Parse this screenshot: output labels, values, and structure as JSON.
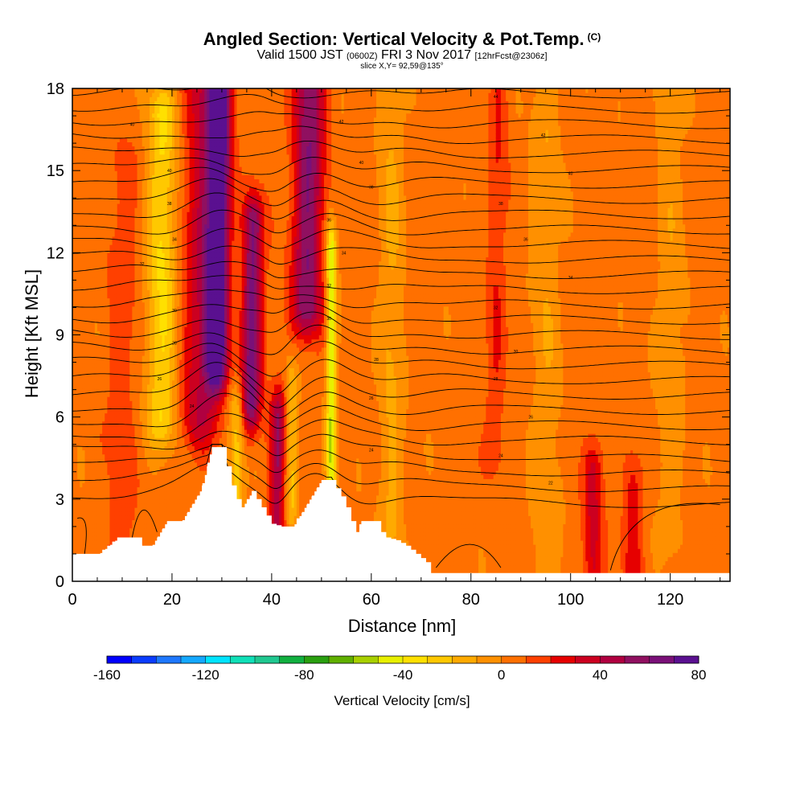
{
  "header": {
    "title_main": "Angled Section: Vertical Velocity & Pot.Temp.",
    "title_unit": "(C)",
    "valid_a": "Valid 1500 JST",
    "valid_b": "(0600Z)",
    "valid_c": "FRI 3 Nov 2017",
    "valid_d": "[12hrFcst@2306z]",
    "slice": "slice X,Y= 92,59@135°"
  },
  "chart_data": {
    "type": "heatmap",
    "xlabel": "Distance [nm]",
    "ylabel": "Height [Kft MSL]",
    "xlim": [
      0,
      132
    ],
    "ylim": [
      0,
      18
    ],
    "x_ticks": [
      0,
      20,
      40,
      60,
      80,
      100,
      120
    ],
    "y_ticks": [
      0,
      3,
      6,
      9,
      12,
      15,
      18
    ],
    "colorbar": {
      "label": "Vertical Velocity [cm/s]",
      "range": [
        -160,
        80
      ],
      "ticks": [
        -160,
        -120,
        -80,
        -40,
        0,
        40,
        80
      ],
      "colors": [
        "#0000ff",
        "#0a3cff",
        "#1e78ff",
        "#14a8ff",
        "#00e4ff",
        "#10e0b8",
        "#20c890",
        "#12b040",
        "#2aa010",
        "#60b000",
        "#a8d000",
        "#e8f000",
        "#ffe000",
        "#ffc800",
        "#ffaa00",
        "#ff9000",
        "#ff7000",
        "#ff4000",
        "#e60000",
        "#cc0020",
        "#b00040",
        "#901060",
        "#7a1078",
        "#5a1090"
      ]
    },
    "velocity_features": [
      {
        "x": 29,
        "strength": 75,
        "width": 2.2,
        "z_low": 8.0,
        "z_high": 18
      },
      {
        "x": 26,
        "strength": 35,
        "width": 4.0,
        "z_low": 6.0,
        "z_high": 18
      },
      {
        "x": 36,
        "strength": 60,
        "width": 2.0,
        "z_low": 6.5,
        "z_high": 13
      },
      {
        "x": 47,
        "strength": 55,
        "width": 3.0,
        "z_low": 10.0,
        "z_high": 18
      },
      {
        "x": 41.5,
        "strength": 45,
        "width": 1.6,
        "z_low": 1.5,
        "z_high": 6.0
      },
      {
        "x": 52,
        "strength": -55,
        "width": 1.0,
        "z_low": 4.0,
        "z_high": 12.0
      },
      {
        "x": 18,
        "strength": -35,
        "width": 3.0,
        "z_low": 6.0,
        "z_high": 17
      },
      {
        "x": 33,
        "strength": -30,
        "width": 1.5,
        "z_low": 3.0,
        "z_high": 6.0
      },
      {
        "x": 44,
        "strength": -25,
        "width": 1.2,
        "z_low": 3.0,
        "z_high": 7.0
      },
      {
        "x": 105,
        "strength": 28,
        "width": 2.0,
        "z_low": 0.5,
        "z_high": 4.0
      },
      {
        "x": 113,
        "strength": 22,
        "width": 2.0,
        "z_low": 0.5,
        "z_high": 3.5
      },
      {
        "x": 10,
        "strength": 12,
        "width": 3.0,
        "z_low": 1.0,
        "z_high": 15
      },
      {
        "x": 85,
        "strength": 15,
        "width": 2.0,
        "z_low": 5.0,
        "z_high": 18
      },
      {
        "x": 64,
        "strength": -15,
        "width": 2.5,
        "z_low": 0.5,
        "z_high": 18
      },
      {
        "x": 95,
        "strength": -12,
        "width": 3.0,
        "z_low": 0.5,
        "z_high": 18
      },
      {
        "x": 120,
        "strength": -10,
        "width": 3.0,
        "z_low": 2.0,
        "z_high": 18
      }
    ],
    "terrain": [
      [
        0,
        1.0
      ],
      [
        5,
        1.0
      ],
      [
        7,
        1.3
      ],
      [
        9,
        1.6
      ],
      [
        13,
        1.6
      ],
      [
        14,
        1.3
      ],
      [
        16,
        1.3
      ],
      [
        17,
        1.6
      ],
      [
        18,
        1.9
      ],
      [
        19,
        2.2
      ],
      [
        22,
        2.2
      ],
      [
        23,
        2.5
      ],
      [
        24,
        2.8
      ],
      [
        25,
        3.1
      ],
      [
        26,
        3.5
      ],
      [
        27,
        4.2
      ],
      [
        28,
        4.9
      ],
      [
        30,
        4.9
      ],
      [
        31,
        4.2
      ],
      [
        32,
        3.5
      ],
      [
        33,
        3.0
      ],
      [
        34,
        2.7
      ],
      [
        35,
        3.0
      ],
      [
        36,
        3.3
      ],
      [
        37,
        3.0
      ],
      [
        38,
        2.7
      ],
      [
        39,
        2.4
      ],
      [
        40,
        2.1
      ],
      [
        42,
        2.0
      ],
      [
        44,
        2.0
      ],
      [
        45,
        2.3
      ],
      [
        46,
        2.5
      ],
      [
        47,
        2.8
      ],
      [
        48,
        3.1
      ],
      [
        49,
        3.4
      ],
      [
        50,
        3.7
      ],
      [
        52,
        3.7
      ],
      [
        53,
        3.4
      ],
      [
        54,
        3.1
      ],
      [
        55,
        2.7
      ],
      [
        56,
        2.2
      ],
      [
        57,
        1.8
      ],
      [
        58,
        2.2
      ],
      [
        61,
        2.2
      ],
      [
        62,
        1.8
      ],
      [
        63,
        1.6
      ],
      [
        65,
        1.5
      ],
      [
        67,
        1.3
      ],
      [
        69,
        1.0
      ],
      [
        71,
        0.7
      ],
      [
        72,
        0.3
      ],
      [
        132,
        0.3
      ]
    ],
    "theta_contour_labels": [
      {
        "x": 12,
        "z": 16.7,
        "text": "40"
      },
      {
        "x": 19.5,
        "z": 15.0,
        "text": "40"
      },
      {
        "x": 19.5,
        "z": 13.8,
        "text": "38"
      },
      {
        "x": 20.5,
        "z": 12.5,
        "text": "34"
      },
      {
        "x": 14,
        "z": 11.6,
        "text": "32"
      },
      {
        "x": 20.5,
        "z": 9.9,
        "text": "30"
      },
      {
        "x": 20.5,
        "z": 8.7,
        "text": "28"
      },
      {
        "x": 17.5,
        "z": 7.4,
        "text": "26"
      },
      {
        "x": 24,
        "z": 6.4,
        "text": "24"
      },
      {
        "x": 54,
        "z": 16.8,
        "text": "42"
      },
      {
        "x": 58,
        "z": 15.3,
        "text": "40"
      },
      {
        "x": 60,
        "z": 14.4,
        "text": "38"
      },
      {
        "x": 51.5,
        "z": 13.2,
        "text": "36"
      },
      {
        "x": 54.5,
        "z": 12.0,
        "text": "34"
      },
      {
        "x": 51.5,
        "z": 10.8,
        "text": "32"
      },
      {
        "x": 51.5,
        "z": 9.6,
        "text": "30"
      },
      {
        "x": 61,
        "z": 8.1,
        "text": "28"
      },
      {
        "x": 60,
        "z": 6.7,
        "text": "26"
      },
      {
        "x": 60,
        "z": 4.8,
        "text": "24"
      },
      {
        "x": 85,
        "z": 17.7,
        "text": "44"
      },
      {
        "x": 94.5,
        "z": 16.3,
        "text": "42"
      },
      {
        "x": 100,
        "z": 14.9,
        "text": "40"
      },
      {
        "x": 86,
        "z": 13.8,
        "text": "38"
      },
      {
        "x": 91,
        "z": 12.5,
        "text": "36"
      },
      {
        "x": 100,
        "z": 11.1,
        "text": "34"
      },
      {
        "x": 85,
        "z": 10.0,
        "text": "32"
      },
      {
        "x": 89,
        "z": 8.4,
        "text": "30"
      },
      {
        "x": 85,
        "z": 7.4,
        "text": "28"
      },
      {
        "x": 92,
        "z": 6.0,
        "text": "26"
      },
      {
        "x": 86,
        "z": 4.6,
        "text": "24"
      },
      {
        "x": 96,
        "z": 3.6,
        "text": "22"
      }
    ]
  }
}
